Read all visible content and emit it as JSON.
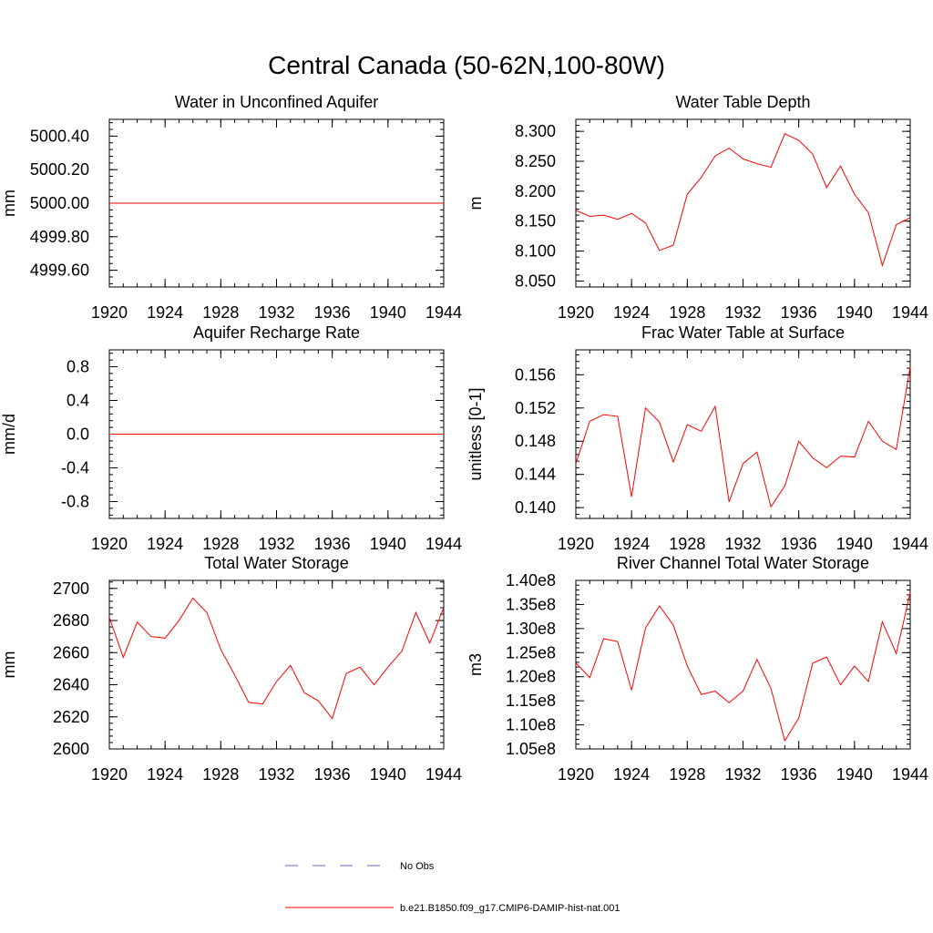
{
  "figure": {
    "title": "Central Canada (50-62N,100-80W)",
    "series_color": "#ff0000",
    "obs_color": "#6666cc"
  },
  "legend": {
    "obs_label": "No Obs",
    "model_label": "b.e21.B1850.f09_g17.CMIP6-DAMIP-hist-nat.001"
  },
  "chart_data": [
    {
      "type": "line",
      "title": "Water in Unconfined Aquifer",
      "xlabel": "",
      "ylabel": "mm",
      "xlim": [
        1920,
        1944
      ],
      "ylim": [
        4999.5,
        5000.5
      ],
      "xticks": [
        "1920",
        "1924",
        "1928",
        "1932",
        "1936",
        "1940",
        "1944"
      ],
      "yticks": [
        "4999.60",
        "4999.80",
        "5000.00",
        "5000.20",
        "5000.40"
      ],
      "x": [
        1920,
        1944
      ],
      "series": [
        {
          "values": [
            5000.0,
            5000.0
          ]
        }
      ]
    },
    {
      "type": "line",
      "title": "Water Table Depth",
      "xlabel": "",
      "ylabel": "m",
      "xlim": [
        1920,
        1944
      ],
      "ylim": [
        8.04,
        8.32
      ],
      "xticks": [
        "1920",
        "1924",
        "1928",
        "1932",
        "1936",
        "1940",
        "1944"
      ],
      "yticks": [
        "8.050",
        "8.100",
        "8.150",
        "8.200",
        "8.250",
        "8.300"
      ],
      "x": [
        1920,
        1921,
        1922,
        1923,
        1924,
        1925,
        1926,
        1927,
        1928,
        1929,
        1930,
        1931,
        1932,
        1933,
        1934,
        1935,
        1936,
        1937,
        1938,
        1939,
        1940,
        1941,
        1942,
        1943,
        1944
      ],
      "series": [
        {
          "values": [
            8.168,
            8.158,
            8.16,
            8.153,
            8.163,
            8.147,
            8.101,
            8.11,
            8.195,
            8.223,
            8.259,
            8.272,
            8.254,
            8.246,
            8.24,
            8.296,
            8.285,
            8.262,
            8.206,
            8.242,
            8.195,
            8.164,
            8.076,
            8.144,
            8.156
          ]
        }
      ]
    },
    {
      "type": "line",
      "title": "Aquifer Recharge Rate",
      "xlabel": "",
      "ylabel": "mm/d",
      "xlim": [
        1920,
        1944
      ],
      "ylim": [
        -1.0,
        1.0
      ],
      "xticks": [
        "1920",
        "1924",
        "1928",
        "1932",
        "1936",
        "1940",
        "1944"
      ],
      "yticks": [
        "-0.8",
        "-0.4",
        "0.0",
        "0.4",
        "0.8"
      ],
      "x": [
        1920,
        1944
      ],
      "series": [
        {
          "values": [
            0.0,
            0.0
          ]
        }
      ]
    },
    {
      "type": "line",
      "title": "Frac Water Table at Surface",
      "xlabel": "",
      "ylabel": "unitless [0-1]",
      "xlim": [
        1920,
        1944
      ],
      "ylim": [
        0.1387,
        0.159
      ],
      "xticks": [
        "1920",
        "1924",
        "1928",
        "1932",
        "1936",
        "1940",
        "1944"
      ],
      "yticks": [
        "0.140",
        "0.144",
        "0.148",
        "0.152",
        "0.156"
      ],
      "x": [
        1920,
        1921,
        1922,
        1923,
        1924,
        1925,
        1926,
        1927,
        1928,
        1929,
        1930,
        1931,
        1932,
        1933,
        1934,
        1935,
        1936,
        1937,
        1938,
        1939,
        1940,
        1941,
        1942,
        1943,
        1944
      ],
      "series": [
        {
          "values": [
            0.1453,
            0.1504,
            0.1512,
            0.151,
            0.1413,
            0.152,
            0.1503,
            0.1455,
            0.15,
            0.1492,
            0.1522,
            0.1407,
            0.1453,
            0.1467,
            0.1401,
            0.1426,
            0.148,
            0.146,
            0.1448,
            0.1462,
            0.1461,
            0.1504,
            0.148,
            0.147,
            0.157
          ]
        }
      ]
    },
    {
      "type": "line",
      "title": "Total Water Storage",
      "xlabel": "",
      "ylabel": "mm",
      "xlim": [
        1920,
        1944
      ],
      "ylim": [
        2600,
        2705
      ],
      "xticks": [
        "1920",
        "1924",
        "1928",
        "1932",
        "1936",
        "1940",
        "1944"
      ],
      "yticks": [
        "2600",
        "2620",
        "2640",
        "2660",
        "2680",
        "2700"
      ],
      "x": [
        1920,
        1921,
        1922,
        1923,
        1924,
        1925,
        1926,
        1927,
        1928,
        1929,
        1930,
        1931,
        1932,
        1933,
        1934,
        1935,
        1936,
        1937,
        1938,
        1939,
        1940,
        1941,
        1942,
        1943,
        1944
      ],
      "series": [
        {
          "values": [
            2682,
            2657,
            2679,
            2670,
            2669,
            2680,
            2694,
            2685,
            2662,
            2646,
            2629,
            2628,
            2642,
            2652,
            2635,
            2630,
            2619,
            2647,
            2651,
            2640,
            2651,
            2661,
            2685,
            2666,
            2688
          ]
        }
      ]
    },
    {
      "type": "line",
      "title": "River Channel Total Water Storage",
      "xlabel": "",
      "ylabel": "m3",
      "xlim": [
        1920,
        1944
      ],
      "ylim": [
        105000000.0,
        140000000.0
      ],
      "xticks": [
        "1920",
        "1924",
        "1928",
        "1932",
        "1936",
        "1940",
        "1944"
      ],
      "yticks": [
        "1.05e8",
        "1.10e8",
        "1.15e8",
        "1.20e8",
        "1.25e8",
        "1.30e8",
        "1.35e8",
        "1.40e8"
      ],
      "x": [
        1920,
        1921,
        1922,
        1923,
        1924,
        1925,
        1926,
        1927,
        1928,
        1929,
        1930,
        1931,
        1932,
        1933,
        1934,
        1935,
        1936,
        1937,
        1938,
        1939,
        1940,
        1941,
        1942,
        1943,
        1944
      ],
      "series": [
        {
          "values": [
            122900000.0,
            119800000.0,
            127900000.0,
            127300000.0,
            117200000.0,
            130100000.0,
            134700000.0,
            130700000.0,
            122200000.0,
            116300000.0,
            117000000.0,
            114600000.0,
            117000000.0,
            123600000.0,
            117600000.0,
            106700000.0,
            111400000.0,
            122800000.0,
            124100000.0,
            118300000.0,
            122200000.0,
            119000000.0,
            131400000.0,
            124800000.0,
            137500000.0
          ]
        }
      ]
    }
  ]
}
